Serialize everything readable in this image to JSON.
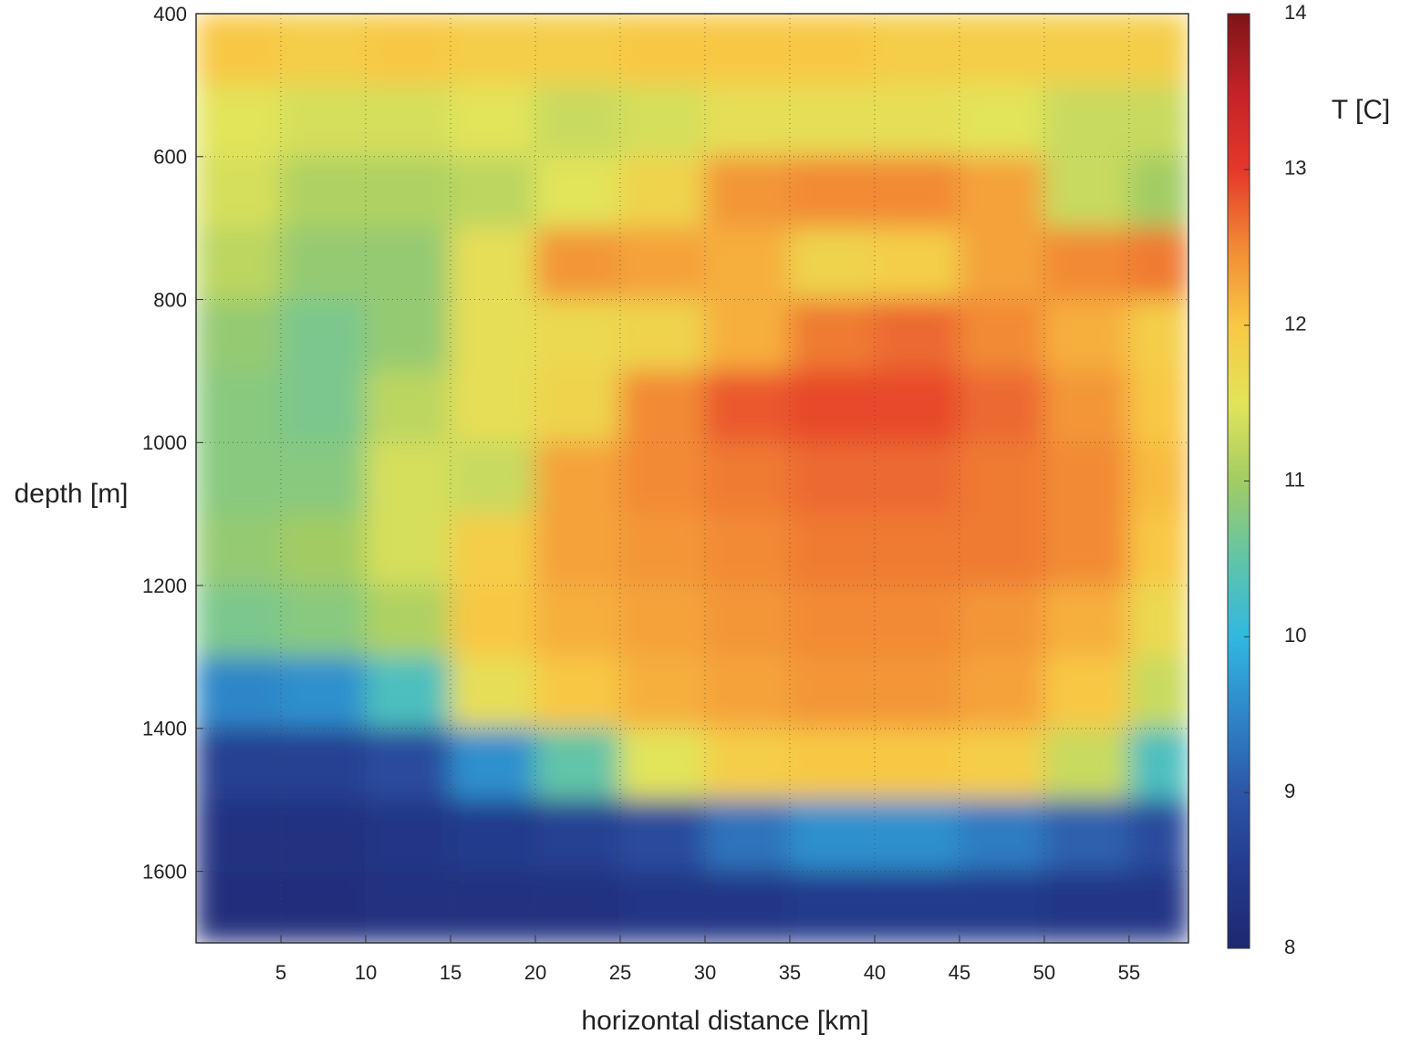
{
  "chart_data": {
    "type": "heatmap",
    "xlabel": "horizontal distance [km]",
    "ylabel": "depth [m]",
    "colorbar_label": "T [C]",
    "x_edges": [
      0,
      5,
      10,
      15,
      20,
      25,
      30,
      35,
      40,
      45,
      50,
      55,
      58.5
    ],
    "y_edges": [
      400,
      500,
      600,
      700,
      800,
      900,
      1000,
      1100,
      1200,
      1300,
      1400,
      1500,
      1600,
      1700
    ],
    "z": [
      [
        12.0,
        11.9,
        12.0,
        11.9,
        11.9,
        12.0,
        12.0,
        12.0,
        11.9,
        11.9,
        11.9,
        11.9
      ],
      [
        11.5,
        11.4,
        11.4,
        11.5,
        11.3,
        11.4,
        11.6,
        11.6,
        11.6,
        11.5,
        11.3,
        11.3
      ],
      [
        11.4,
        11.1,
        11.1,
        11.2,
        11.5,
        11.8,
        12.4,
        12.5,
        12.5,
        12.3,
        11.3,
        11.0
      ],
      [
        11.2,
        10.9,
        10.9,
        11.6,
        12.4,
        12.3,
        12.2,
        11.8,
        11.9,
        12.3,
        12.5,
        12.6
      ],
      [
        10.9,
        10.7,
        10.9,
        11.6,
        11.7,
        11.8,
        12.2,
        12.6,
        12.7,
        12.5,
        12.2,
        11.9
      ],
      [
        10.8,
        10.7,
        11.2,
        11.6,
        11.8,
        12.5,
        12.8,
        12.9,
        12.9,
        12.7,
        12.4,
        12.0
      ],
      [
        10.8,
        10.8,
        11.4,
        11.3,
        12.3,
        12.5,
        12.6,
        12.7,
        12.7,
        12.6,
        12.5,
        12.1
      ],
      [
        10.9,
        11.0,
        11.4,
        11.9,
        12.3,
        12.4,
        12.5,
        12.6,
        12.6,
        12.6,
        12.5,
        12.0
      ],
      [
        10.7,
        10.8,
        11.1,
        12.0,
        12.2,
        12.3,
        12.4,
        12.5,
        12.5,
        12.4,
        12.2,
        11.7
      ],
      [
        9.5,
        9.6,
        10.3,
        11.6,
        12.0,
        12.2,
        12.3,
        12.4,
        12.4,
        12.3,
        12.0,
        11.3
      ],
      [
        8.6,
        8.6,
        8.8,
        9.6,
        10.5,
        11.5,
        11.9,
        12.0,
        12.0,
        11.9,
        11.3,
        10.3
      ],
      [
        8.3,
        8.3,
        8.4,
        8.5,
        8.6,
        8.8,
        9.3,
        9.6,
        9.6,
        9.4,
        9.1,
        8.8
      ],
      [
        8.2,
        8.2,
        8.3,
        8.3,
        8.3,
        8.4,
        8.4,
        8.5,
        8.5,
        8.5,
        8.4,
        8.4
      ]
    ],
    "xlim": [
      0,
      58.5
    ],
    "ylim": [
      1700,
      400
    ],
    "xticks": [
      5,
      10,
      15,
      20,
      25,
      30,
      35,
      40,
      45,
      50,
      55
    ],
    "yticks": [
      400,
      600,
      800,
      1000,
      1200,
      1400,
      1600
    ],
    "zlim": [
      8,
      14
    ],
    "zticks": [
      8,
      9,
      10,
      11,
      12,
      13,
      14
    ],
    "colormap": [
      "#1e2870",
      "#243a8c",
      "#2c56a8",
      "#2f86c8",
      "#30b8e0",
      "#62c4a8",
      "#a2cc64",
      "#e2e45a",
      "#f8c844",
      "#f28a34",
      "#e4382a",
      "#c42228",
      "#7e1418"
    ],
    "grid": true
  }
}
